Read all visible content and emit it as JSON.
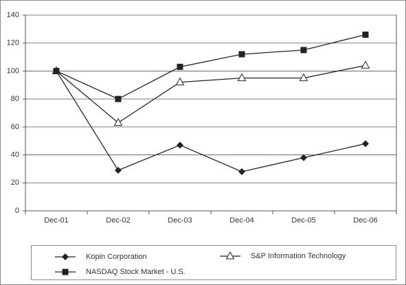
{
  "chart_data": {
    "type": "line",
    "categories": [
      "Dec-01",
      "Dec-02",
      "Dec-03",
      "Dec-04",
      "Dec-05",
      "Dec-06"
    ],
    "series": [
      {
        "name": "Kopin Corporation",
        "color": "#222222",
        "marker": "diamond",
        "values": [
          100,
          29,
          47,
          28,
          38,
          48
        ]
      },
      {
        "name": "S&P Information Technology",
        "color": "#222222",
        "marker": "open-triangle",
        "values": [
          100,
          63,
          92,
          95,
          95,
          104
        ]
      },
      {
        "name": "NASDAQ Stock Market - U.S.",
        "color": "#222222",
        "marker": "square",
        "values": [
          100,
          80,
          103,
          112,
          115,
          126
        ]
      }
    ],
    "ylim": [
      0,
      140
    ],
    "yticks": [
      0,
      20,
      40,
      60,
      80,
      100,
      120,
      140
    ],
    "grid": true
  }
}
